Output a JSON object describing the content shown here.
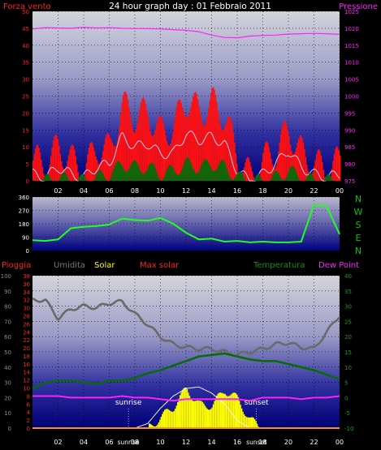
{
  "header": {
    "title": "24 hour graph day : 01 Febbraio 2011",
    "wind_label": "Forza vento",
    "pressure_label": "Pressione"
  },
  "middle": {
    "compass": [
      "N",
      "W",
      "S",
      "E",
      "N"
    ]
  },
  "bottom_labels": {
    "rain": "Pioggia",
    "humidity": "Umidita",
    "solar": "Solar",
    "max_solar": "Max solar",
    "temperature": "Temperatura",
    "dew_point": "Dew Point",
    "sunrise": "sunrise",
    "sunset": "sunset"
  },
  "colors": {
    "wind": "#ff1010",
    "pressure": "#ff20ff",
    "direction": "#20ff20",
    "humidity": "#6a6a6a",
    "solar": "#ffff00",
    "max_solar": "#ffffff",
    "temperature": "#0a6a0a",
    "dew_point": "#ff20ff",
    "axis_red": "#ff2020",
    "axis_green": "#10c010",
    "title": "#ffffff"
  },
  "chart_data": [
    {
      "type": "area",
      "name": "wind",
      "x_ticks": [
        "02",
        "04",
        "06",
        "08",
        "10",
        "12",
        "14",
        "16",
        "18",
        "20",
        "22",
        "00"
      ],
      "y_left": {
        "label": "Forza vento",
        "ticks": [
          0,
          5,
          10,
          15,
          20,
          25,
          30,
          35,
          40,
          45,
          50
        ],
        "ylim": [
          0,
          50
        ]
      },
      "y_right": {
        "label": "Pressione",
        "ticks": [
          975,
          980,
          985,
          990,
          995,
          1000,
          1005,
          1010,
          1015,
          1020,
          1025
        ],
        "ylim": [
          975,
          1025
        ]
      },
      "x_hours": [
        0,
        1,
        2,
        3,
        4,
        5,
        6,
        7,
        8,
        9,
        10,
        11,
        12,
        13,
        14,
        15,
        16,
        17,
        18,
        19,
        20,
        21,
        22,
        23,
        24
      ],
      "gust": [
        6,
        5,
        10,
        6,
        3,
        10,
        9,
        22,
        19,
        20,
        14,
        16,
        24,
        20,
        23,
        19,
        7,
        1,
        6,
        9,
        15,
        8,
        5,
        3,
        6
      ],
      "avg_speed": [
        2,
        1,
        4,
        2,
        1,
        4,
        5,
        13,
        10,
        11,
        8,
        8,
        14,
        12,
        13,
        11,
        3,
        0,
        2,
        5,
        9,
        4,
        2,
        1,
        2
      ],
      "min_speed": [
        0,
        0,
        1,
        0,
        0,
        1,
        2,
        5,
        4,
        4,
        2,
        3,
        5,
        4,
        5,
        4,
        1,
        0,
        0,
        1,
        3,
        1,
        0,
        0,
        0
      ],
      "pressure": [
        1019.8,
        1020.2,
        1020.1,
        1020.0,
        1020.3,
        1020.1,
        1020.2,
        1020.0,
        1019.9,
        1019.9,
        1019.8,
        1019.6,
        1019.4,
        1019.0,
        1018.0,
        1017.3,
        1017.2,
        1017.7,
        1017.9,
        1018.0,
        1018.3,
        1018.4,
        1018.5,
        1018.4,
        1018.2
      ],
      "grid": true
    },
    {
      "type": "line",
      "name": "wind_direction",
      "x_ticks": [
        "02",
        "04",
        "06",
        "08",
        "10",
        "12",
        "14",
        "16",
        "18",
        "20",
        "22",
        "00"
      ],
      "y_left": {
        "ticks": [
          0,
          90,
          180,
          270,
          360
        ],
        "ylim": [
          0,
          360
        ]
      },
      "x_hours": [
        0,
        1,
        2,
        3,
        4,
        5,
        6,
        7,
        8,
        9,
        10,
        11,
        12,
        13,
        14,
        15,
        16,
        17,
        18,
        19,
        20,
        21,
        22,
        23,
        24
      ],
      "direction": [
        70,
        65,
        75,
        150,
        160,
        165,
        175,
        215,
        205,
        200,
        220,
        180,
        120,
        75,
        80,
        60,
        65,
        55,
        60,
        55,
        55,
        60,
        310,
        295,
        110
      ],
      "grid": true
    },
    {
      "type": "line",
      "name": "atmosphere",
      "x_ticks": [
        "02",
        "04",
        "06",
        "08",
        "10",
        "12",
        "14",
        "16",
        "18",
        "20",
        "22",
        "00"
      ],
      "y_left_outer": {
        "label": "Umidita",
        "ticks": [
          0,
          10,
          20,
          30,
          40,
          50,
          60,
          70,
          80,
          90,
          100
        ],
        "ylim": [
          0,
          100
        ]
      },
      "y_left_inner": {
        "label": "Pioggia",
        "ticks": [
          0,
          2,
          4,
          6,
          8,
          10,
          12,
          14,
          16,
          18,
          20,
          22,
          24,
          26,
          28,
          30,
          32,
          34,
          36,
          38
        ],
        "ylim": [
          0,
          38
        ]
      },
      "y_right": {
        "label": "Temperatura",
        "ticks": [
          -10,
          -5,
          0,
          5,
          10,
          15,
          20,
          25,
          30,
          35,
          40
        ],
        "ylim": [
          -10,
          40
        ]
      },
      "x_hours": [
        0,
        1,
        2,
        3,
        4,
        5,
        6,
        7,
        8,
        9,
        10,
        11,
        12,
        13,
        14,
        15,
        16,
        17,
        18,
        19,
        20,
        21,
        22,
        23,
        24
      ],
      "humidity": [
        84,
        84,
        72,
        78,
        80,
        79,
        82,
        83,
        75,
        68,
        60,
        55,
        53,
        52,
        52,
        50,
        48,
        50,
        52,
        55,
        56,
        53,
        52,
        63,
        74
      ],
      "temperature": [
        3.0,
        5.0,
        5.5,
        5.5,
        5.0,
        4.5,
        5.5,
        5.5,
        6.5,
        8.0,
        9.0,
        10.5,
        12.0,
        13.5,
        14.0,
        14.5,
        13.5,
        12.5,
        12.0,
        12.0,
        11.0,
        10.0,
        9.0,
        7.5,
        6.0
      ],
      "dew_point": [
        0.5,
        0.5,
        0.5,
        0.0,
        0.0,
        0.0,
        0.0,
        0.5,
        0.0,
        0.0,
        -0.5,
        -1.0,
        -0.5,
        -0.5,
        -0.5,
        -0.5,
        -0.5,
        -1.0,
        0.0,
        0.0,
        0.0,
        -0.5,
        0.0,
        0.0,
        0.5
      ],
      "solar": [
        0,
        0,
        0,
        0,
        0,
        0,
        0,
        0,
        0,
        0,
        7,
        14,
        26,
        15,
        15,
        25,
        19,
        5,
        0,
        0,
        0,
        0,
        0,
        0,
        0
      ],
      "max_solar": [
        0,
        0,
        0,
        0,
        0,
        0,
        0,
        0,
        0,
        3,
        13,
        21,
        26,
        27,
        23,
        16,
        5,
        0,
        0,
        0,
        0,
        0,
        0,
        0,
        0
      ],
      "rain": [
        0,
        0,
        0,
        0,
        0,
        0,
        0,
        0,
        0,
        0,
        0,
        0,
        0,
        0,
        0,
        0,
        0,
        0,
        0,
        0,
        0,
        0,
        0,
        0,
        0
      ],
      "sunrise_hour": 7.5,
      "sunset_hour": 17.5,
      "grid": true
    }
  ]
}
